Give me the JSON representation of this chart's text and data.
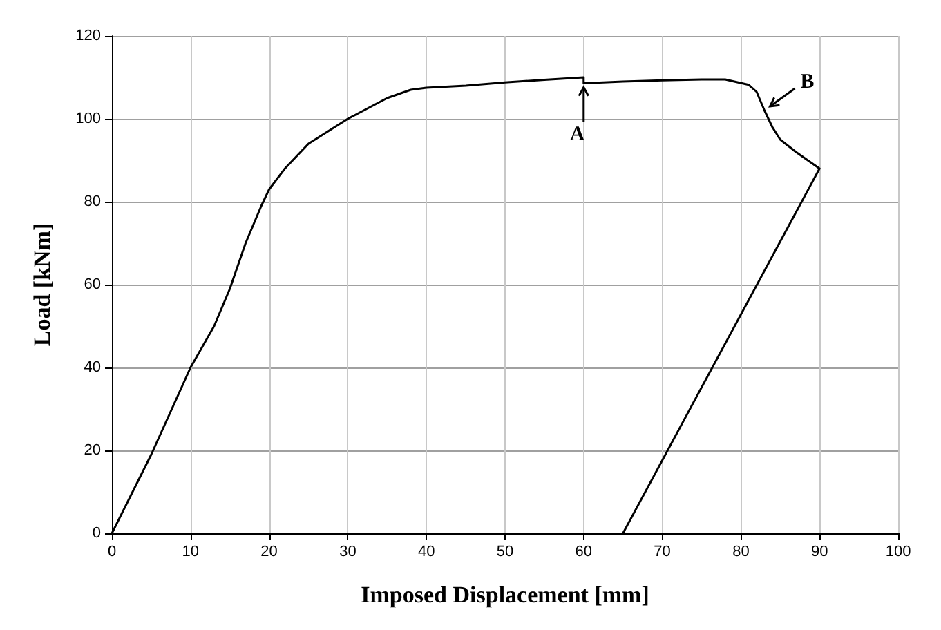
{
  "chart_data": {
    "type": "line",
    "xlabel": "Imposed Displacement [mm]",
    "ylabel": "Load [kNm]",
    "x": [
      0,
      5,
      10,
      13,
      15,
      17,
      19,
      20,
      22,
      25,
      30,
      35,
      38,
      40,
      45,
      50,
      55,
      60,
      60,
      65,
      70,
      75,
      78,
      81,
      82,
      83,
      84,
      85,
      87,
      90,
      65
    ],
    "series": [
      {
        "color": "#000000",
        "values": [
          0,
          19,
          40,
          50,
          59,
          70,
          79,
          83,
          88,
          94,
          100,
          105,
          107,
          107.5,
          108,
          108.8,
          109.4,
          110,
          108.6,
          109,
          109.3,
          109.5,
          109.5,
          108.2,
          106.5,
          102,
          98,
          95,
          92,
          88,
          0
        ]
      }
    ],
    "xlim": [
      0,
      100
    ],
    "xticks": [
      0,
      10,
      20,
      30,
      40,
      50,
      60,
      70,
      80,
      90,
      100
    ],
    "ylim": [
      0,
      120
    ],
    "yticks": [
      0,
      20,
      40,
      60,
      80,
      100,
      120
    ],
    "grid": true,
    "marker": "none",
    "line_style": "solid",
    "annotations": [
      {
        "text": "A",
        "x": 60,
        "y": 108.6
      },
      {
        "text": "B",
        "x": 83,
        "y": 102
      }
    ]
  }
}
